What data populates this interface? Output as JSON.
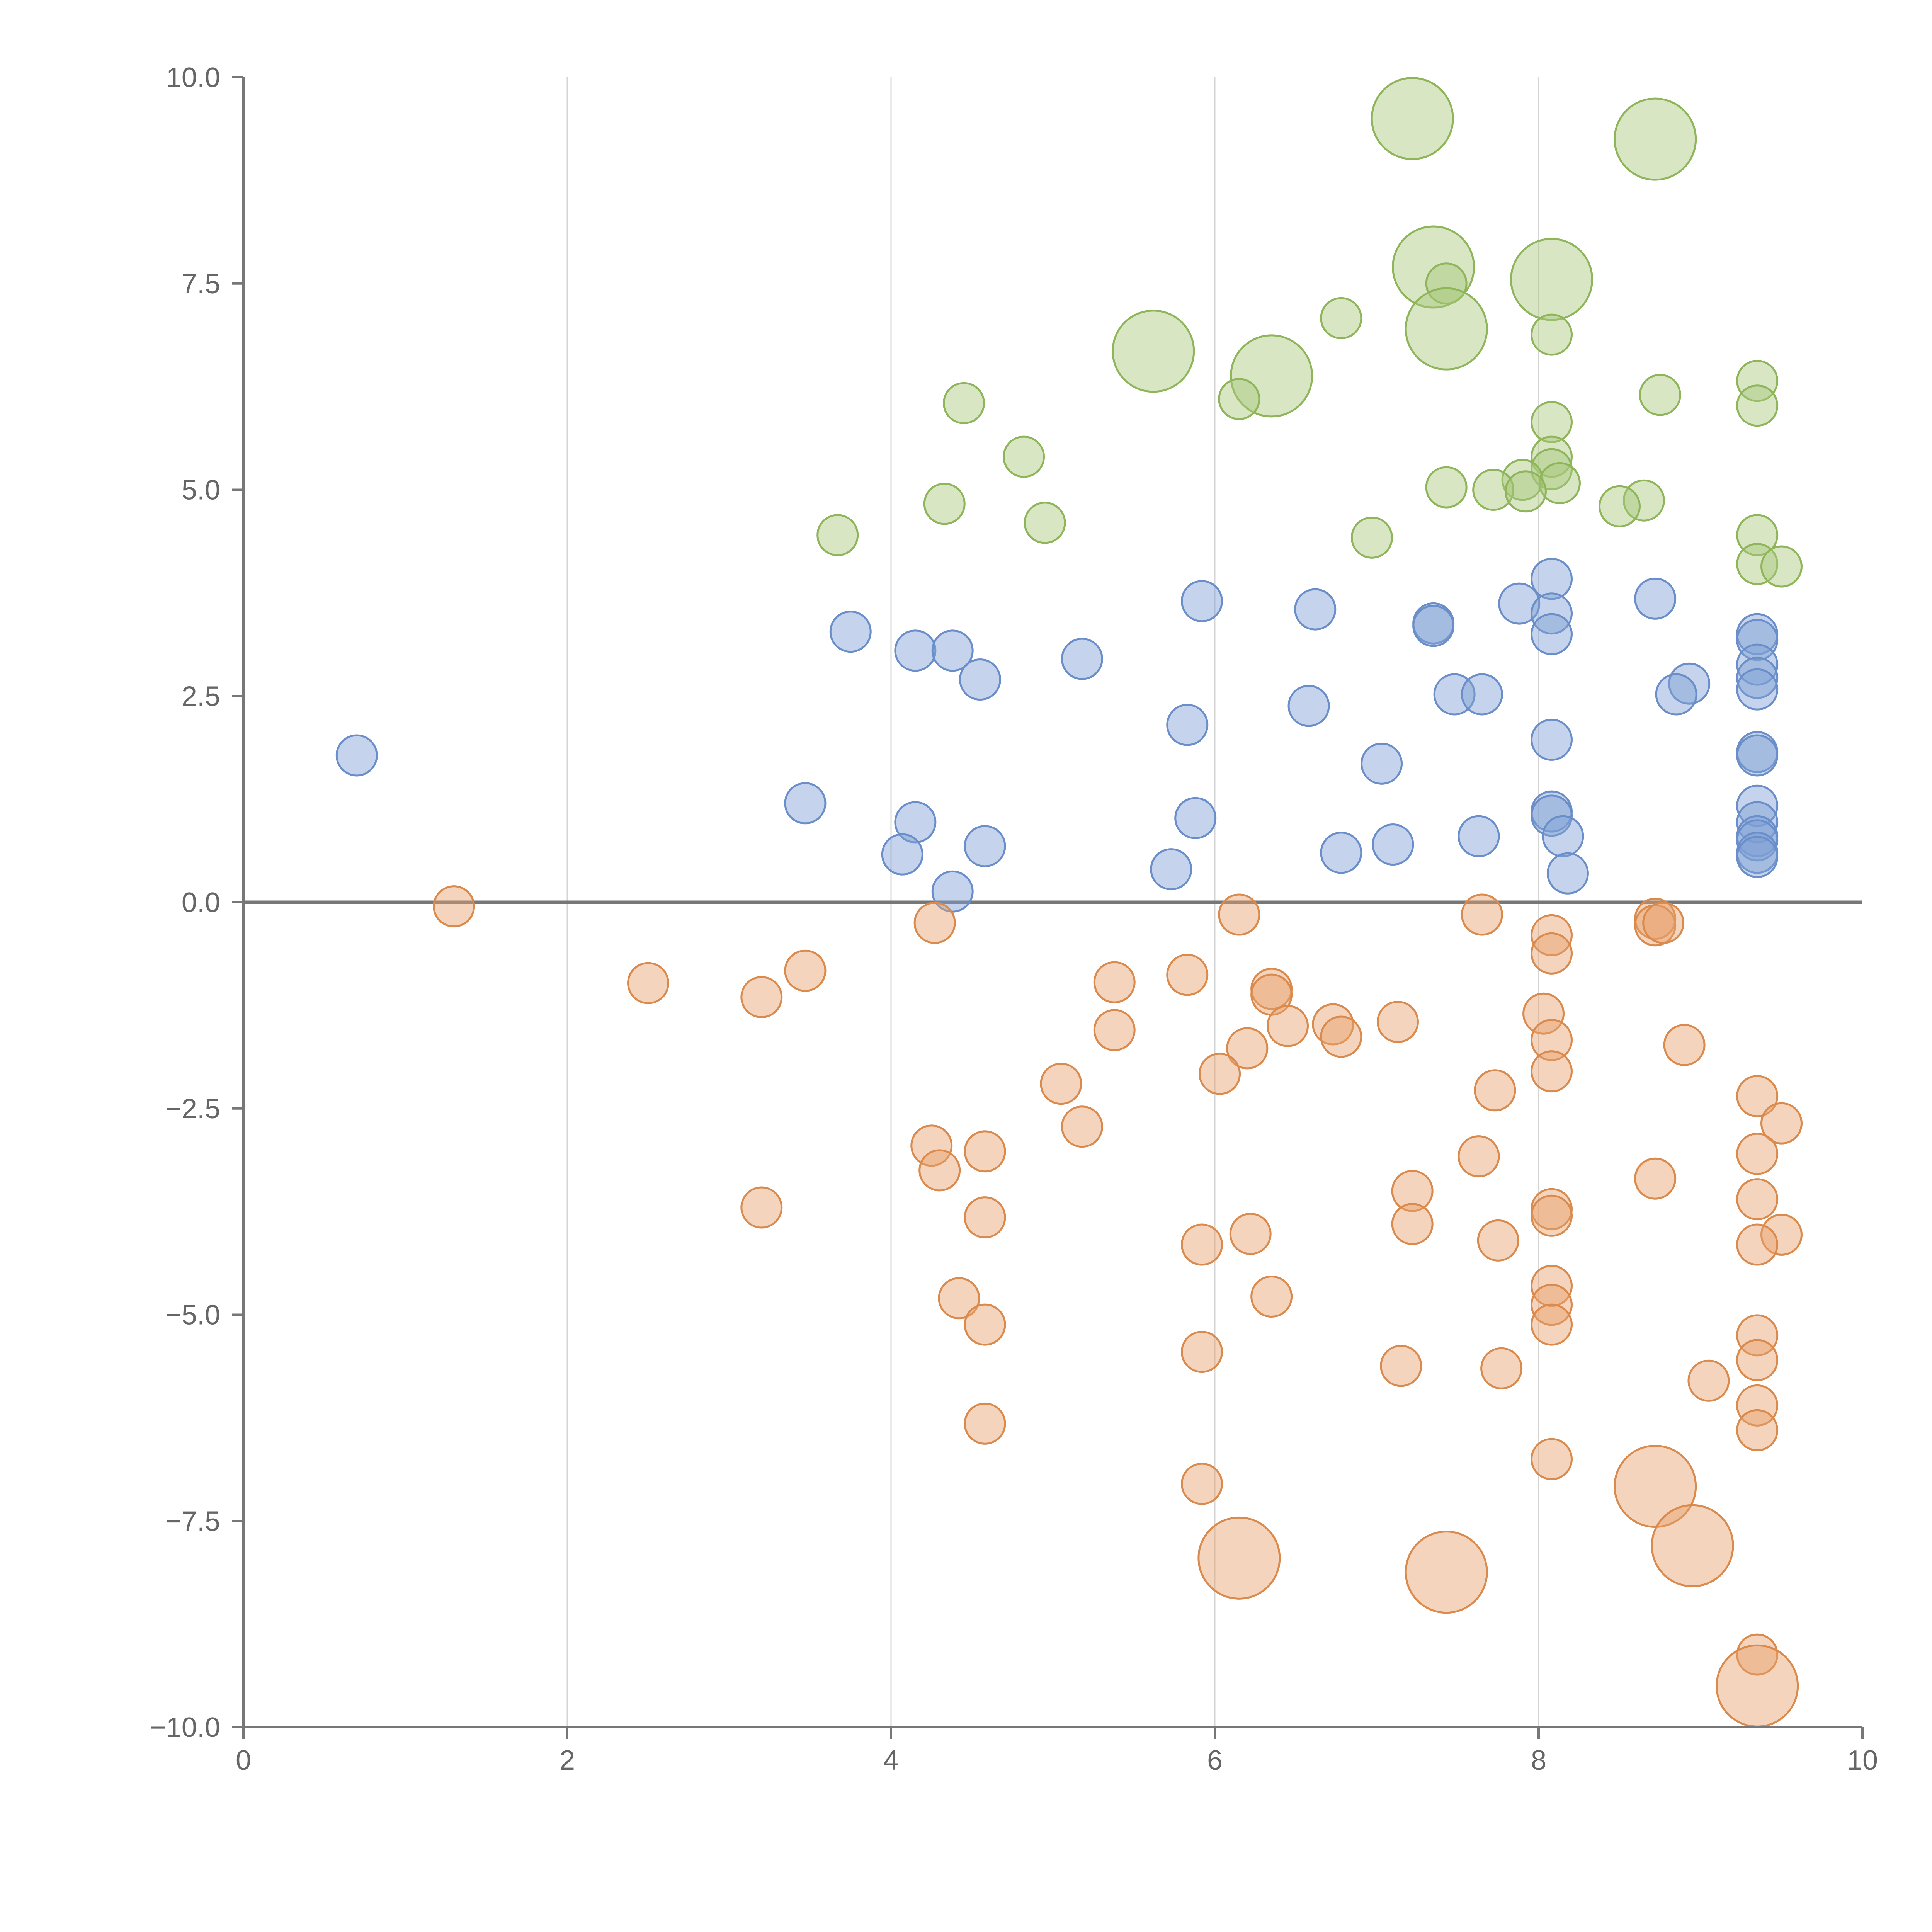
{
  "chart_data": {
    "type": "scatter",
    "title": "",
    "xlabel": "",
    "ylabel": "",
    "xlim": [
      0,
      10
    ],
    "ylim": [
      -10,
      10
    ],
    "x_ticks": [
      "0",
      "2",
      "4",
      "6",
      "8",
      "10"
    ],
    "y_ticks": [
      "10.0",
      "7.5",
      "5.0",
      "2.5",
      "0.0",
      "−2.5",
      "−5.0",
      "−7.5",
      "−10.0"
    ],
    "grid": "vertical",
    "zero_line": true,
    "legend": "none",
    "series": [
      {
        "color": "#a9c87a",
        "stroke": "#8fb55b",
        "points": [
          [
            7.22,
            9.5,
            2
          ],
          [
            8.72,
            9.25,
            2
          ],
          [
            7.35,
            7.7,
            2
          ],
          [
            8.08,
            7.55,
            2
          ],
          [
            7.43,
            7.5,
            1
          ],
          [
            7.43,
            6.95,
            2
          ],
          [
            6.78,
            7.08,
            1
          ],
          [
            8.08,
            6.88,
            1
          ],
          [
            5.62,
            6.68,
            2
          ],
          [
            6.35,
            6.38,
            2
          ],
          [
            6.15,
            6.1,
            1
          ],
          [
            4.45,
            6.05,
            1
          ],
          [
            9.35,
            6.32,
            1
          ],
          [
            8.75,
            6.15,
            1
          ],
          [
            9.35,
            6.02,
            1
          ],
          [
            8.08,
            5.82,
            1
          ],
          [
            4.82,
            5.4,
            1
          ],
          [
            8.08,
            5.4,
            1
          ],
          [
            8.08,
            5.25,
            1
          ],
          [
            7.9,
            5.12,
            1
          ],
          [
            8.13,
            5.08,
            1
          ],
          [
            7.43,
            5.03,
            1
          ],
          [
            7.72,
            5.0,
            1
          ],
          [
            7.92,
            4.98,
            1
          ],
          [
            4.33,
            4.83,
            1
          ],
          [
            8.65,
            4.87,
            1
          ],
          [
            8.5,
            4.8,
            1
          ],
          [
            4.95,
            4.6,
            1
          ],
          [
            3.67,
            4.45,
            1
          ],
          [
            6.97,
            4.42,
            1
          ],
          [
            9.35,
            4.45,
            1
          ],
          [
            9.35,
            4.1,
            1
          ],
          [
            9.5,
            4.07,
            1
          ]
        ]
      },
      {
        "color": "#7fa0d4",
        "stroke": "#6a8ec9",
        "points": [
          [
            8.08,
            3.92,
            1
          ],
          [
            5.92,
            3.65,
            1
          ],
          [
            8.72,
            3.68,
            1
          ],
          [
            7.88,
            3.62,
            1
          ],
          [
            6.62,
            3.55,
            1
          ],
          [
            8.08,
            3.5,
            1
          ],
          [
            7.35,
            3.38,
            1
          ],
          [
            7.35,
            3.35,
            1
          ],
          [
            3.75,
            3.28,
            1
          ],
          [
            8.08,
            3.25,
            1
          ],
          [
            9.35,
            3.25,
            1
          ],
          [
            9.35,
            3.18,
            1
          ],
          [
            4.15,
            3.05,
            1
          ],
          [
            4.38,
            3.05,
            1
          ],
          [
            5.18,
            2.95,
            1
          ],
          [
            9.35,
            2.88,
            1
          ],
          [
            4.55,
            2.7,
            1
          ],
          [
            9.35,
            2.72,
            1
          ],
          [
            8.93,
            2.65,
            1
          ],
          [
            9.35,
            2.58,
            1
          ],
          [
            7.48,
            2.52,
            1
          ],
          [
            7.65,
            2.52,
            1
          ],
          [
            8.85,
            2.52,
            1
          ],
          [
            6.58,
            2.38,
            1
          ],
          [
            5.83,
            2.15,
            1
          ],
          [
            8.08,
            1.97,
            1
          ],
          [
            9.35,
            1.82,
            1
          ],
          [
            9.35,
            1.78,
            1
          ],
          [
            0.7,
            1.78,
            1
          ],
          [
            7.03,
            1.68,
            1
          ],
          [
            3.47,
            1.2,
            1
          ],
          [
            9.35,
            1.17,
            1
          ],
          [
            8.08,
            1.1,
            1
          ],
          [
            8.08,
            1.05,
            1
          ],
          [
            5.88,
            1.02,
            1
          ],
          [
            4.15,
            0.97,
            1
          ],
          [
            9.35,
            0.97,
            1
          ],
          [
            8.15,
            0.8,
            1
          ],
          [
            7.63,
            0.8,
            1
          ],
          [
            9.35,
            0.8,
            1
          ],
          [
            9.35,
            0.75,
            1
          ],
          [
            4.58,
            0.68,
            1
          ],
          [
            7.1,
            0.7,
            1
          ],
          [
            6.78,
            0.6,
            1
          ],
          [
            4.07,
            0.58,
            1
          ],
          [
            9.35,
            0.6,
            1
          ],
          [
            9.35,
            0.55,
            1
          ],
          [
            5.73,
            0.4,
            1
          ],
          [
            8.18,
            0.35,
            1
          ],
          [
            4.38,
            0.13,
            1
          ]
        ]
      },
      {
        "color": "#e6a06a",
        "stroke": "#d98a4c",
        "points": [
          [
            1.3,
            -0.05,
            1
          ],
          [
            6.15,
            -0.15,
            1
          ],
          [
            7.65,
            -0.15,
            1
          ],
          [
            8.72,
            -0.2,
            1
          ],
          [
            4.27,
            -0.25,
            1
          ],
          [
            8.72,
            -0.28,
            1
          ],
          [
            8.77,
            -0.25,
            1
          ],
          [
            8.08,
            -0.4,
            1
          ],
          [
            8.08,
            -0.62,
            1
          ],
          [
            3.47,
            -0.83,
            1
          ],
          [
            5.83,
            -0.88,
            1
          ],
          [
            5.38,
            -0.97,
            1
          ],
          [
            2.5,
            -0.98,
            1
          ],
          [
            6.35,
            -1.05,
            1
          ],
          [
            6.35,
            -1.12,
            1
          ],
          [
            3.2,
            -1.15,
            1
          ],
          [
            8.03,
            -1.35,
            1
          ],
          [
            7.13,
            -1.45,
            1
          ],
          [
            6.73,
            -1.48,
            1
          ],
          [
            6.45,
            -1.5,
            1
          ],
          [
            5.38,
            -1.55,
            1
          ],
          [
            6.78,
            -1.63,
            1
          ],
          [
            8.08,
            -1.67,
            1
          ],
          [
            8.9,
            -1.73,
            1
          ],
          [
            6.2,
            -1.77,
            1
          ],
          [
            6.03,
            -2.08,
            1
          ],
          [
            8.08,
            -2.05,
            1
          ],
          [
            5.05,
            -2.2,
            1
          ],
          [
            7.73,
            -2.28,
            1
          ],
          [
            9.35,
            -2.35,
            1
          ],
          [
            9.5,
            -2.68,
            1
          ],
          [
            5.18,
            -2.72,
            1
          ],
          [
            4.25,
            -2.95,
            1
          ],
          [
            4.58,
            -3.02,
            1
          ],
          [
            9.35,
            -3.05,
            1
          ],
          [
            7.63,
            -3.08,
            1
          ],
          [
            4.3,
            -3.25,
            1
          ],
          [
            8.72,
            -3.35,
            1
          ],
          [
            7.22,
            -3.5,
            1
          ],
          [
            9.35,
            -3.6,
            1
          ],
          [
            3.2,
            -3.7,
            1
          ],
          [
            8.08,
            -3.72,
            1
          ],
          [
            8.08,
            -3.8,
            1
          ],
          [
            4.58,
            -3.82,
            1
          ],
          [
            7.22,
            -3.9,
            1
          ],
          [
            6.22,
            -4.02,
            1
          ],
          [
            9.5,
            -4.03,
            1
          ],
          [
            7.75,
            -4.1,
            1
          ],
          [
            5.92,
            -4.15,
            1
          ],
          [
            9.35,
            -4.15,
            1
          ],
          [
            8.08,
            -4.65,
            1
          ],
          [
            6.35,
            -4.78,
            1
          ],
          [
            4.42,
            -4.8,
            1
          ],
          [
            8.08,
            -4.88,
            1
          ],
          [
            4.58,
            -5.12,
            1
          ],
          [
            8.08,
            -5.12,
            1
          ],
          [
            9.35,
            -5.25,
            1
          ],
          [
            5.92,
            -5.45,
            1
          ],
          [
            9.35,
            -5.55,
            1
          ],
          [
            7.15,
            -5.62,
            1
          ],
          [
            7.77,
            -5.65,
            1
          ],
          [
            9.05,
            -5.8,
            1
          ],
          [
            9.35,
            -6.1,
            1
          ],
          [
            4.58,
            -6.32,
            1
          ],
          [
            9.35,
            -6.4,
            1
          ],
          [
            8.08,
            -6.75,
            1
          ],
          [
            5.92,
            -7.05,
            1
          ],
          [
            8.72,
            -7.08,
            2
          ],
          [
            8.95,
            -7.8,
            2
          ],
          [
            6.15,
            -7.95,
            2
          ],
          [
            7.43,
            -8.12,
            2
          ],
          [
            9.35,
            -9.12,
            1
          ],
          [
            9.35,
            -9.5,
            2
          ]
        ]
      }
    ]
  }
}
